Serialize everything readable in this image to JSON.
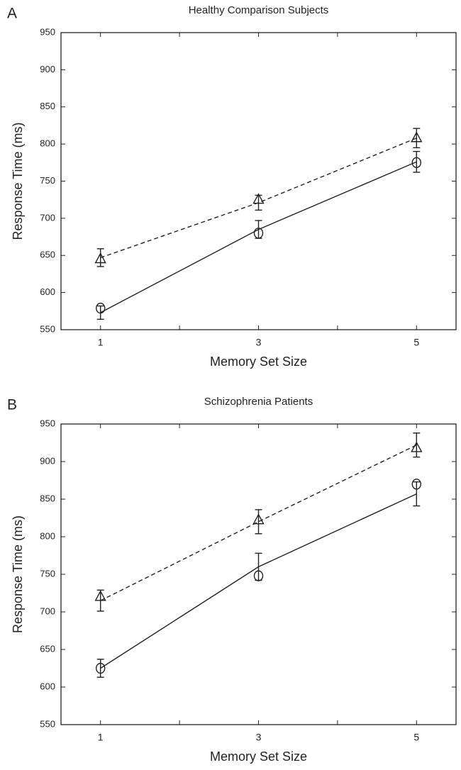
{
  "chart_data": [
    {
      "type": "line",
      "panel": "A",
      "title": "Healthy Comparison Subjects",
      "xlabel": "Memory Set Size",
      "ylabel": "Response Time (ms)",
      "x": [
        1,
        3,
        5
      ],
      "xlim": [
        0.5,
        5.5
      ],
      "xticks": [
        1,
        3,
        5
      ],
      "xminorticks": [
        2,
        4
      ],
      "ylim": [
        550,
        950
      ],
      "yticks": [
        550,
        600,
        650,
        700,
        750,
        800,
        850,
        900,
        950
      ],
      "series": [
        {
          "marker": "triangle",
          "dashed": true,
          "color": "#222222",
          "values": [
            645,
            725,
            808
          ],
          "fit": [
            647,
            721,
            808
          ],
          "errors": [
            12,
            10,
            13
          ]
        },
        {
          "marker": "circle",
          "dashed": false,
          "color": "#222222",
          "values": [
            579,
            680,
            775
          ],
          "fit": [
            573,
            685,
            776
          ],
          "errors": [
            9,
            12,
            14
          ]
        }
      ]
    },
    {
      "type": "line",
      "panel": "B",
      "title": "Schizophrenia Patients",
      "xlabel": "Memory Set Size",
      "ylabel": "Response Time (ms)",
      "x": [
        1,
        3,
        5
      ],
      "xlim": [
        0.5,
        5.5
      ],
      "xticks": [
        1,
        3,
        5
      ],
      "xminorticks": [
        2,
        4
      ],
      "ylim": [
        550,
        950
      ],
      "yticks": [
        550,
        600,
        650,
        700,
        750,
        800,
        850,
        900,
        950
      ],
      "series": [
        {
          "marker": "triangle",
          "dashed": true,
          "color": "#222222",
          "values": [
            720,
            822,
            918
          ],
          "fit": [
            715,
            820,
            922
          ],
          "errors": [
            14,
            16,
            16
          ]
        },
        {
          "marker": "circle",
          "dashed": false,
          "color": "#222222",
          "values": [
            625,
            748,
            870
          ],
          "fit": [
            625,
            760,
            857
          ],
          "errors": [
            12,
            18,
            16
          ]
        }
      ]
    }
  ]
}
